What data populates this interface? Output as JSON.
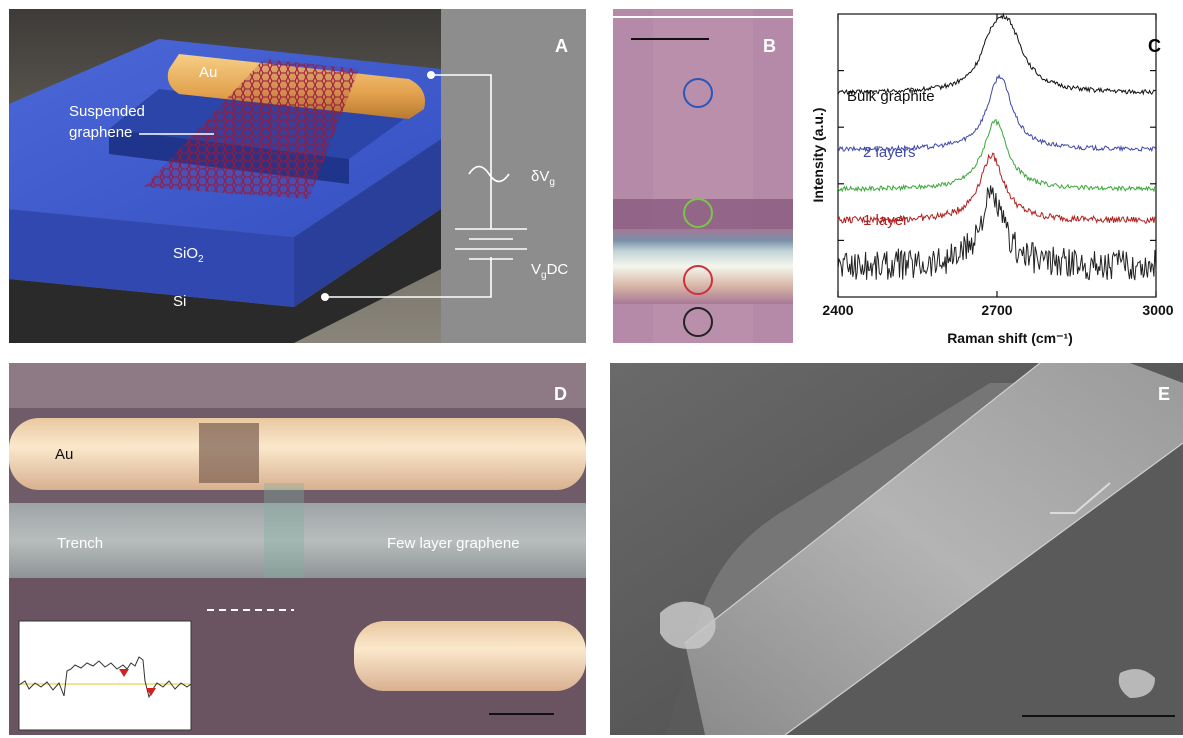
{
  "panels": {
    "a": {
      "label": "A",
      "au": "Au",
      "suspended_line1": "Suspended",
      "suspended_line2": "graphene",
      "sio2": "SiO",
      "sio2_sub": "2",
      "si": "Si",
      "dv_delta": "δV",
      "dv_sub": "g",
      "vg_v": "V",
      "vg_sub": "g",
      "vg_dc": "DC"
    },
    "b": {
      "label": "B",
      "circle_colors": [
        "#2b56b8",
        "#7cc44a",
        "#d0303a",
        "#222222"
      ]
    },
    "c": {
      "label": "C",
      "annotations": {
        "bulk": "Bulk graphite",
        "two": "2 layers",
        "one": "1 layer"
      },
      "ann_colors": {
        "bulk": "#111111",
        "two": "#4048a8",
        "one": "#b02020"
      }
    },
    "d": {
      "label": "D",
      "au": "Au",
      "trench": "Trench",
      "few": "Few layer graphene"
    },
    "e": {
      "label": "E"
    }
  },
  "chart_data": {
    "type": "line",
    "title": "",
    "xlabel": "Raman shift (cm⁻¹)",
    "ylabel": "Intensity (a.u.)",
    "xlim": [
      2400,
      3000
    ],
    "xticks": [
      "2400",
      "2700",
      "3000"
    ],
    "y_ticks_labeled": false,
    "series": [
      {
        "name": "Bulk graphite",
        "color": "#111111",
        "peak_x": 2720,
        "offset": 3.6,
        "peak_height": 1.1
      },
      {
        "name": "2 layers",
        "color": "#4048a8",
        "peak_x": 2705,
        "offset": 2.6,
        "peak_height": 1.3
      },
      {
        "name": "",
        "color": "#3aa83a",
        "peak_x": 2697,
        "offset": 1.9,
        "peak_height": 1.2
      },
      {
        "name": "1 layer",
        "color": "#b02020",
        "peak_x": 2690,
        "offset": 1.35,
        "peak_height": 1.15
      },
      {
        "name": "",
        "color": "#222222",
        "peak_x": 2690,
        "offset": 0.55,
        "peak_height": 1.2
      }
    ]
  }
}
